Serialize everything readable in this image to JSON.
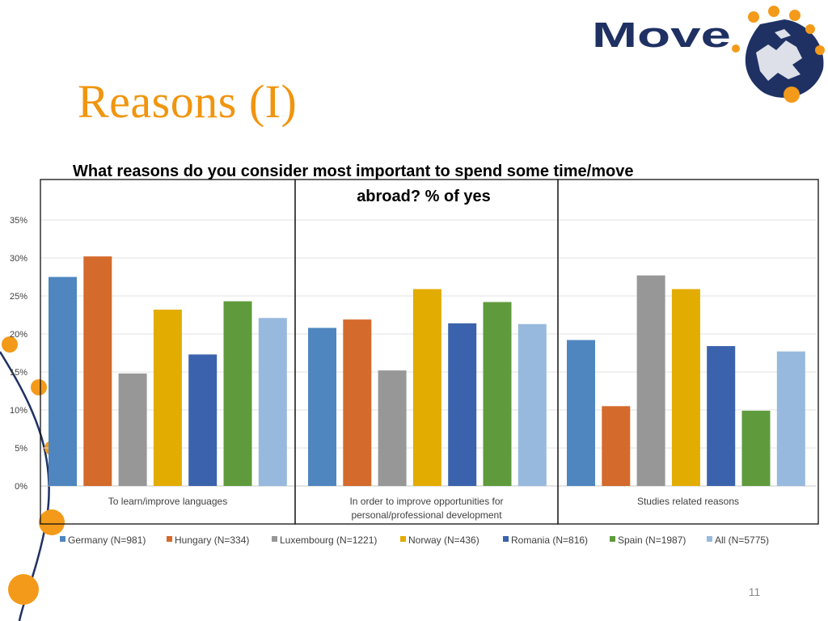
{
  "slide": {
    "title": "Reasons (I)",
    "page_number": "11",
    "logo_text": "Move"
  },
  "colors": {
    "accent": "#f0950f",
    "navy": "#1f3163"
  },
  "chart_data": {
    "type": "bar",
    "title_line1": "What reasons do you consider most important to spend some time/move",
    "title_line2": "abroad? % of yes",
    "categories": [
      "To learn/improve languages",
      "In order to improve opportunities for personal/professional development",
      "Studies related reasons"
    ],
    "category_lines": [
      [
        "To learn/improve languages"
      ],
      [
        "In order to improve opportunities for",
        "personal/professional development"
      ],
      [
        "Studies related reasons"
      ]
    ],
    "series": [
      {
        "name": "Germany (N=981)",
        "color": "#4f86bf",
        "values": [
          27.5,
          20.8,
          19.2
        ]
      },
      {
        "name": "Hungary (N=334)",
        "color": "#d46a2c",
        "values": [
          30.2,
          21.9,
          10.5
        ]
      },
      {
        "name": "Luxembourg (N=1221)",
        "color": "#979797",
        "values": [
          14.8,
          15.2,
          27.7
        ]
      },
      {
        "name": "Norway (N=436)",
        "color": "#e2ac00",
        "values": [
          23.2,
          25.9,
          25.9
        ]
      },
      {
        "name": "Romania (N=816)",
        "color": "#3b62ac",
        "values": [
          17.3,
          21.4,
          18.4
        ]
      },
      {
        "name": "Spain (N=1987)",
        "color": "#5f9b3d",
        "values": [
          24.3,
          24.2,
          9.9
        ]
      },
      {
        "name": "All (N=5775)",
        "color": "#98b9de",
        "values": [
          22.1,
          21.3,
          17.7
        ]
      }
    ],
    "yticks": [
      "0%",
      "5%",
      "10%",
      "15%",
      "20%",
      "25%",
      "30%",
      "35%"
    ],
    "ylim": [
      0,
      35
    ],
    "grid": true,
    "legend_position": "bottom"
  }
}
